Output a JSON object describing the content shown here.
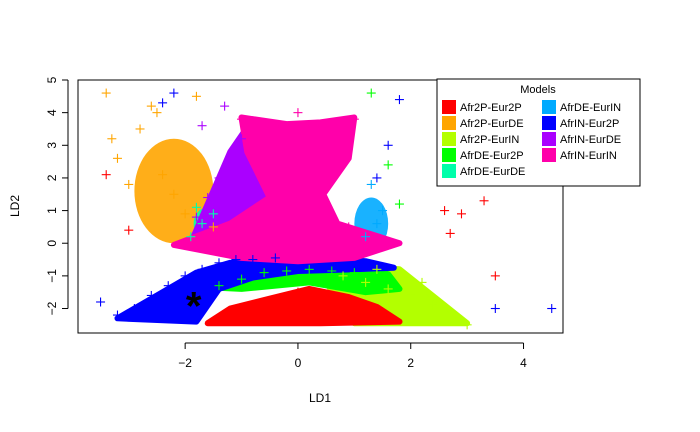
{
  "chart_data": {
    "type": "scatter",
    "title": "",
    "xlabel": "LD1",
    "ylabel": "LD2",
    "xlim": [
      -3.9,
      4.7
    ],
    "ylim": [
      -2.75,
      5
    ],
    "x_ticks": [
      -2,
      0,
      2,
      4
    ],
    "y_ticks": [
      -2,
      -1,
      0,
      1,
      2,
      3,
      4,
      5
    ],
    "marker": "+",
    "legend": {
      "title": "Models",
      "position": "top-right",
      "columns": 2
    },
    "series": [
      {
        "name": "Afr2P-Eur2P",
        "color": "#ff0000",
        "center": [
          0.2,
          -1.9
        ],
        "x": [
          -1.2,
          -0.8,
          -0.4,
          0.0,
          0.4,
          0.8,
          1.2,
          1.5,
          -0.2,
          0.6,
          2.7,
          3.3,
          3.5,
          2.9,
          2.6,
          3.4,
          -3.4,
          -3.0
        ],
        "y": [
          -2.1,
          -1.9,
          -1.8,
          -1.5,
          -1.8,
          -1.9,
          -2.0,
          -2.1,
          -2.2,
          -2.2,
          0.3,
          1.3,
          -1.0,
          0.9,
          1.0,
          2.5,
          2.1,
          0.4
        ]
      },
      {
        "name": "Afr2P-EurDE",
        "color": "#ffa500",
        "center": [
          -2.6,
          2.8
        ],
        "x": [
          -3.4,
          -3.2,
          -3.0,
          -2.8,
          -2.6,
          -2.4,
          -2.2,
          -2.0,
          -1.8,
          -1.5,
          -3.3,
          -2.5
        ],
        "y": [
          4.6,
          2.6,
          1.8,
          3.5,
          4.2,
          2.1,
          1.5,
          0.9,
          4.5,
          0.5,
          3.2,
          4.0
        ]
      },
      {
        "name": "Afr2P-EurIN",
        "color": "#b3ff00",
        "center": [
          1.8,
          -1.4
        ],
        "x": [
          0.8,
          1.2,
          1.6,
          2.0,
          2.4,
          2.8,
          3.0,
          1.4,
          2.2,
          2.6
        ],
        "y": [
          -1.0,
          -1.2,
          -1.4,
          -1.6,
          -1.9,
          -2.3,
          -2.5,
          -0.8,
          -1.2,
          -2.0
        ]
      },
      {
        "name": "AfrDE-Eur2P",
        "color": "#00ff00",
        "center": [
          -0.5,
          -0.9
        ],
        "x": [
          -1.4,
          -1.0,
          -0.6,
          -0.2,
          0.2,
          0.6,
          1.0,
          1.8,
          1.6,
          1.3
        ],
        "y": [
          -1.3,
          -1.1,
          -0.9,
          -0.85,
          -0.8,
          -0.85,
          -0.9,
          1.2,
          2.4,
          4.6
        ]
      },
      {
        "name": "AfrDE-EurDE",
        "color": "#00ffaa",
        "center": [
          -1.7,
          0.6
        ],
        "x": [
          -1.9,
          -1.7,
          -1.5,
          -1.8
        ],
        "y": [
          0.2,
          0.6,
          0.9,
          1.1
        ]
      },
      {
        "name": "AfrDE-EurIN",
        "color": "#00aaff",
        "center": [
          1.3,
          0.4
        ],
        "x": [
          1.2,
          1.4,
          1.5,
          1.3
        ],
        "y": [
          0.2,
          0.6,
          1.0,
          1.8
        ]
      },
      {
        "name": "AfrIN-Eur2P",
        "color": "#0000ff",
        "center": [
          -2.1,
          -1.3
        ],
        "x": [
          -3.5,
          -3.2,
          -2.9,
          -2.6,
          -2.3,
          -2.0,
          -1.7,
          -1.4,
          -1.1,
          -0.8,
          -0.4,
          1.4,
          1.6,
          1.8,
          3.5,
          4.5,
          -2.4,
          -2.2
        ],
        "y": [
          -1.8,
          -2.2,
          -2.0,
          -1.6,
          -1.3,
          -1.0,
          -0.8,
          -0.6,
          -0.5,
          -0.5,
          -0.45,
          2.0,
          3.0,
          4.4,
          -2.0,
          -2.0,
          4.3,
          4.6
        ]
      },
      {
        "name": "AfrIN-EurDE",
        "color": "#aa00ff",
        "center": [
          -1.3,
          1.6
        ],
        "x": [
          -1.8,
          -1.6,
          -1.4,
          -1.2,
          -1.0,
          -1.7,
          -1.3
        ],
        "y": [
          0.8,
          1.4,
          2.0,
          2.6,
          3.2,
          3.6,
          4.2
        ]
      },
      {
        "name": "AfrIN-EurIN",
        "color": "#ff00aa",
        "center": [
          0.0,
          1.5
        ],
        "x": [
          -1.0,
          -0.5,
          0.0,
          0.5,
          1.0,
          -0.9,
          0.9,
          -0.6,
          0.6,
          0.0
        ],
        "y": [
          3.8,
          3.5,
          2.6,
          3.5,
          3.8,
          0.5,
          0.5,
          0.0,
          0.0,
          4.0
        ]
      }
    ],
    "highlight": {
      "x": -1.85,
      "y": -1.85,
      "symbol": "*",
      "color": "#000000"
    }
  }
}
